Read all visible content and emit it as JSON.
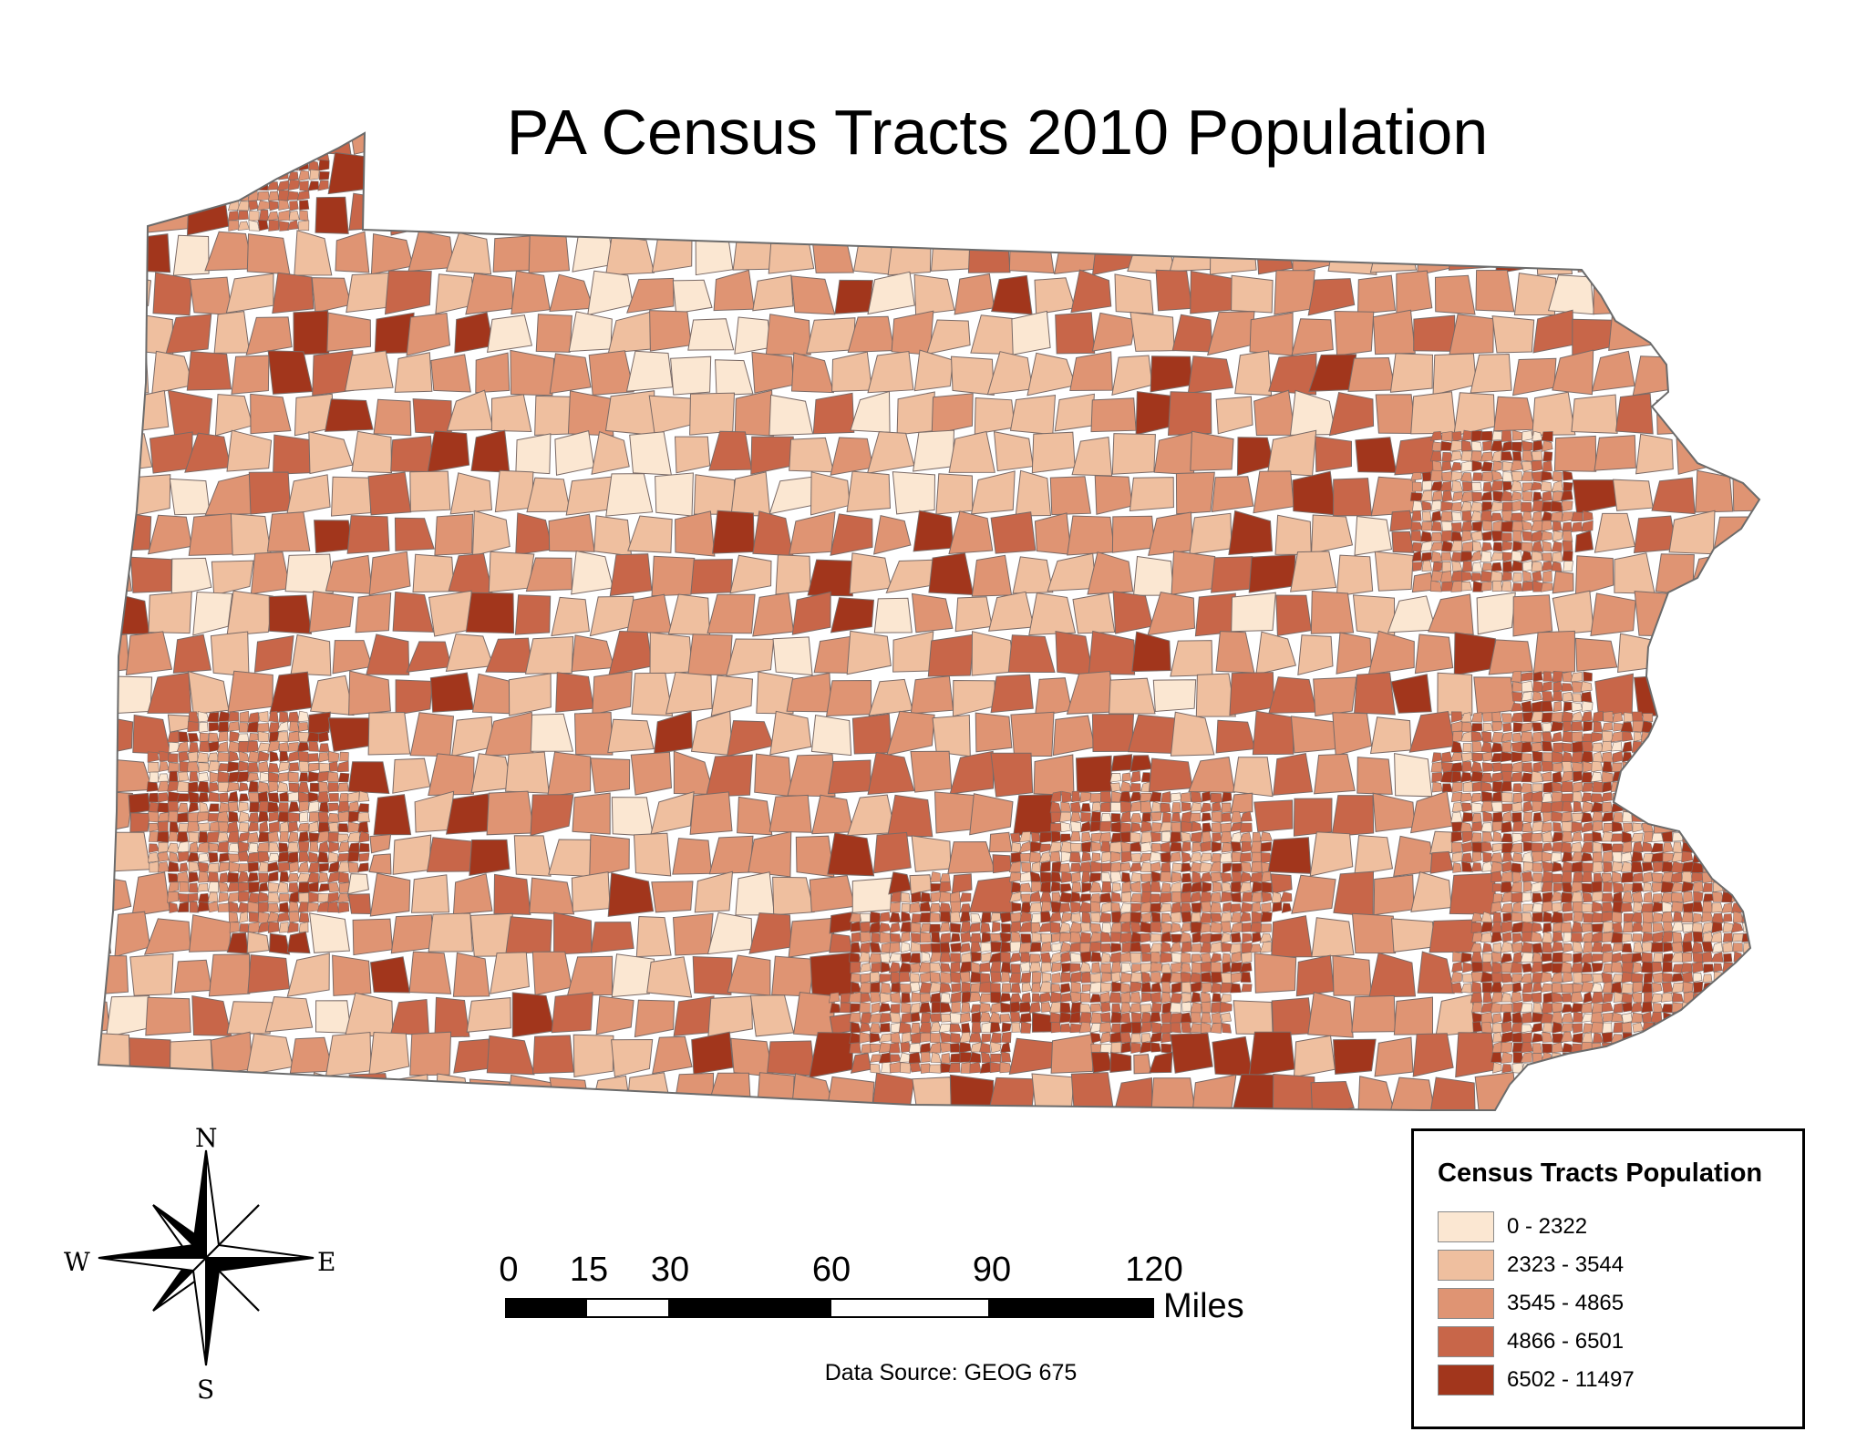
{
  "title": "PA Census Tracts 2010 Population",
  "legend": {
    "title": "Census Tracts Population",
    "classes": [
      {
        "label": "0 - 2322",
        "color": "#fbe7d2"
      },
      {
        "label": "2323 - 3544",
        "color": "#efbf9f"
      },
      {
        "label": "3545 - 4865",
        "color": "#df9473"
      },
      {
        "label": "4866 - 6501",
        "color": "#c86649"
      },
      {
        "label": "6502 - 11497",
        "color": "#a2361c"
      }
    ]
  },
  "scale_bar": {
    "ticks": [
      "0",
      "15",
      "30",
      "60",
      "90",
      "120"
    ],
    "unit": "Miles"
  },
  "compass": {
    "n": "N",
    "s": "S",
    "e": "E",
    "w": "W"
  },
  "source": "Data Source: GEOG 675",
  "colors": {
    "tract_border": "#7a6a66",
    "state_border": "#6b6b6b"
  }
}
